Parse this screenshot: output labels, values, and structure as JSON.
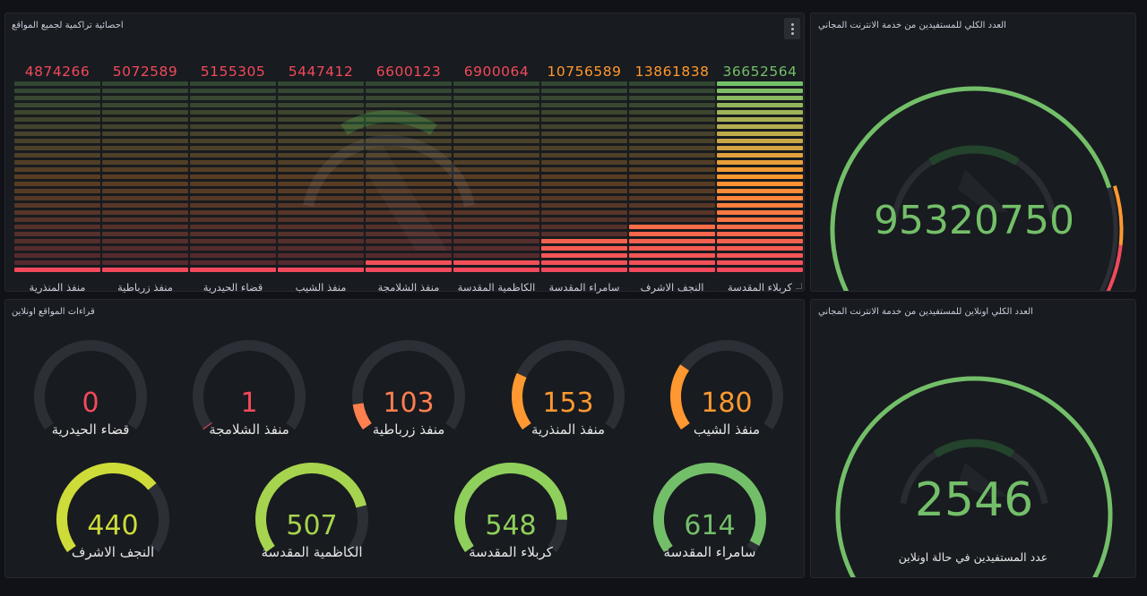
{
  "panels": {
    "cumulative": {
      "title": "احصائية تراكمية لجميع المواقع",
      "bars": [
        {
          "label": "منفذ المنذرية",
          "value": "4874266",
          "fraction": 0.01,
          "value_color": "#f2495c"
        },
        {
          "label": "منفذ زرباطية",
          "value": "5072589",
          "fraction": 0.01,
          "value_color": "#f2495c"
        },
        {
          "label": "قضاء الحيدرية",
          "value": "5155305",
          "fraction": 0.01,
          "value_color": "#f2495c"
        },
        {
          "label": "منفذ الشيب",
          "value": "5447412",
          "fraction": 0.01,
          "value_color": "#f2495c"
        },
        {
          "label": "منفذ الشلامجة",
          "value": "6600123",
          "fraction": 0.08,
          "value_color": "#f2495c"
        },
        {
          "label": "الكاظمية المقدسة",
          "value": "6900064",
          "fraction": 0.08,
          "value_color": "#f2495c"
        },
        {
          "label": "سامراء المقدسة",
          "value": "10756589",
          "fraction": 0.2,
          "value_color": "#ff9830"
        },
        {
          "label": "النجف الاشرف",
          "value": "13861838",
          "fraction": 0.27,
          "value_color": "#ff9830"
        },
        {
          "label": "كربلاء المقدسة",
          "value": "36652564",
          "fraction": 1.0,
          "value_color": "#73bf69"
        }
      ]
    },
    "total": {
      "title": "العدد الكلي للمستفيدين من خدمة الانترنت المجاني",
      "value": "95320750",
      "fraction": 0.78
    },
    "online_sites": {
      "title": "قراءات المواقع اونلاين",
      "gauges": [
        {
          "label": "قضاء الحيدرية",
          "value": "0",
          "fraction": 0.0,
          "color": "#f2495c"
        },
        {
          "label": "منفذ الشلامجة",
          "value": "1",
          "fraction": 0.002,
          "color": "#f2495c"
        },
        {
          "label": "منفذ زرباطية",
          "value": "103",
          "fraction": 0.11,
          "color": "#ff7f4f"
        },
        {
          "label": "منفذ المنذرية",
          "value": "153",
          "fraction": 0.24,
          "color": "#ff9830"
        },
        {
          "label": "منفذ الشيب",
          "value": "180",
          "fraction": 0.28,
          "color": "#ff9830"
        },
        {
          "label": "النجف الاشرف",
          "value": "440",
          "fraction": 0.7,
          "color": "#cddc39"
        },
        {
          "label": "الكاظمية المقدسة",
          "value": "507",
          "fraction": 0.8,
          "color": "#a6d44f"
        },
        {
          "label": "كربلاء المقدسة",
          "value": "548",
          "fraction": 0.86,
          "color": "#8fcf5b"
        },
        {
          "label": "سامراء المقدسة",
          "value": "614",
          "fraction": 0.97,
          "color": "#73bf69"
        }
      ]
    },
    "online_total": {
      "title": "العدد الكلي اونلاين للمستفيدين من خدمة الانترنت المجاني",
      "value": "2546",
      "fraction": 1.0,
      "caption": "عدد المستفيدين في حالة اونلاين"
    }
  },
  "colors": {
    "green": "#73bf69",
    "orange": "#ff9830",
    "red": "#f2495c",
    "track": "#2c2f36"
  },
  "icons": {
    "menu": "kebab-menu-icon",
    "watermark": "emblem-watermark"
  }
}
